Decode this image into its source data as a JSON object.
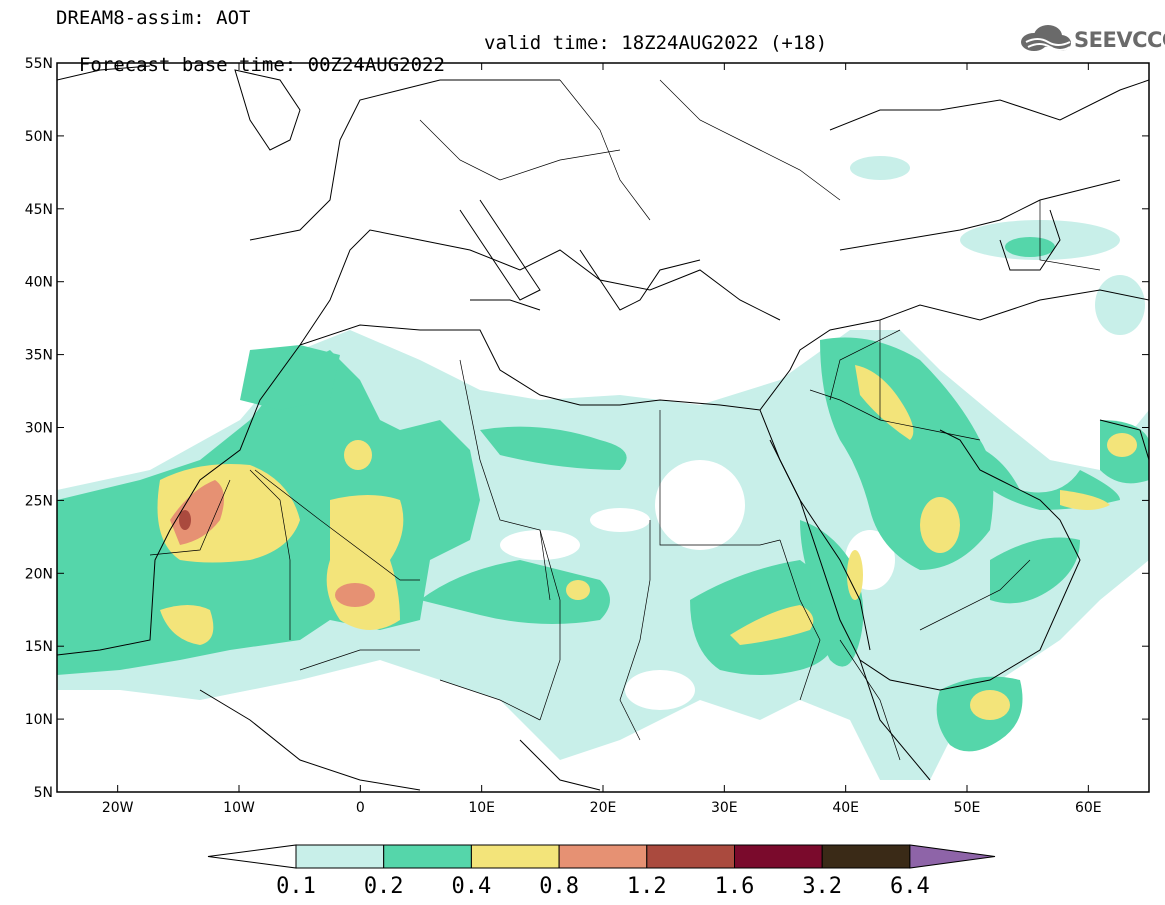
{
  "header": {
    "title": "DREAM8-assim: AOT",
    "base_time": "Forecast base time: 00Z24AUG2022",
    "valid_time": "valid time: 18Z24AUG2022 (+18)"
  },
  "logo": {
    "text": "SEEVCCC",
    "icon": "cloud-icon"
  },
  "map": {
    "lon_range": [
      -25,
      65
    ],
    "lat_range": [
      5,
      55
    ],
    "lat_ticks": [
      "5N",
      "10N",
      "15N",
      "20N",
      "25N",
      "30N",
      "35N",
      "40N",
      "45N",
      "50N",
      "55N"
    ],
    "lon_ticks": [
      "20W",
      "10W",
      "0",
      "10E",
      "20E",
      "30E",
      "40E",
      "50E",
      "60E"
    ]
  },
  "colorbar": {
    "levels": [
      "0.1",
      "0.2",
      "0.4",
      "0.8",
      "1.2",
      "1.6",
      "3.2",
      "6.4"
    ],
    "colors": [
      "#c8efe9",
      "#55d6aa",
      "#f3e47a",
      "#e69173",
      "#aa4a3e",
      "#7a0a2c",
      "#3a2a17",
      "#8e64a8"
    ],
    "under_color": "#ffffff"
  }
}
